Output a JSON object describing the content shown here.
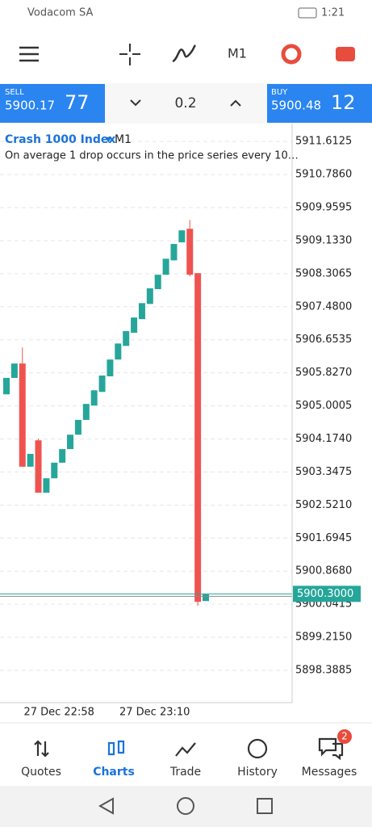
{
  "status_bar": {
    "carrier": "Vodacom SA",
    "time": "1:21"
  },
  "toolbar": {
    "timeframe": "M1"
  },
  "trade_panel": {
    "sell_label": "SELL",
    "sell_price": "5900.17",
    "sell_price_big": "77",
    "volume": "0.2",
    "buy_label": "BUY",
    "buy_price": "5900.48",
    "buy_price_big": "12"
  },
  "chart_data": {
    "type": "candlestick",
    "title": "Crash 1000 Index",
    "timeframe": "M1",
    "subtitle": "On average 1 drop occurs in the price series every 10…",
    "categories": [
      null,
      null,
      null,
      null,
      null,
      null,
      null,
      "27 Dec 22:58",
      null,
      null,
      null,
      null,
      null,
      null,
      null,
      null,
      null,
      null,
      null,
      "27 Dec 23:10",
      null,
      null,
      null,
      null,
      null,
      null
    ],
    "open": [
      5905.29,
      5905.7,
      5906.06,
      5903.48,
      5904.14,
      5902.83,
      5903.19,
      5903.58,
      5903.92,
      5904.28,
      5904.65,
      5905.01,
      5905.35,
      5905.74,
      5906.16,
      5906.5,
      5906.83,
      5907.17,
      5907.55,
      5907.92,
      5908.28,
      5908.64,
      5909.09,
      5909.43,
      5908.32,
      5900.12
    ],
    "high": [
      5905.7,
      5906.06,
      5906.46,
      5903.8,
      5904.18,
      5903.19,
      5903.58,
      5903.92,
      5904.28,
      5904.65,
      5905.05,
      5905.39,
      5905.76,
      5906.16,
      5906.56,
      5906.87,
      5907.21,
      5907.57,
      5907.94,
      5908.28,
      5908.68,
      5909.05,
      5909.39,
      5909.65,
      5908.32,
      5900.29
    ],
    "low": [
      5905.29,
      5905.7,
      5903.48,
      5903.48,
      5902.83,
      5902.83,
      5903.19,
      5903.58,
      5903.92,
      5904.28,
      5904.65,
      5905.01,
      5905.35,
      5905.74,
      5906.16,
      5906.5,
      5906.83,
      5907.17,
      5907.55,
      5907.92,
      5908.28,
      5908.64,
      5909.09,
      5908.24,
      5900.0,
      5900.12
    ],
    "close": [
      5905.7,
      5906.06,
      5903.48,
      5903.8,
      5902.83,
      5903.19,
      5903.58,
      5903.92,
      5904.28,
      5904.65,
      5905.05,
      5905.39,
      5905.76,
      5906.16,
      5906.56,
      5906.87,
      5907.21,
      5907.57,
      5907.94,
      5908.28,
      5908.68,
      5909.05,
      5909.39,
      5908.28,
      5900.1,
      5900.29
    ],
    "up_color": "#26a69a",
    "down_color": "#ef5350",
    "ylim": [
      5897.58,
      5912.02
    ],
    "yticks": [
      5911.6125,
      {
        "value": 5910.786,
        "label": "5910.7860"
      },
      5909.9595,
      {
        "value": 5909.133,
        "label": "5909.1330"
      },
      5908.3065,
      {
        "value": 5907.48,
        "label": "5907.4800"
      },
      5906.6535,
      {
        "value": 5905.827,
        "label": "5905.8270"
      },
      5905.0005,
      {
        "value": 5904.174,
        "label": "5904.1740"
      },
      5903.3475,
      {
        "value": 5902.521,
        "label": "5902.5210"
      },
      5901.6945,
      {
        "value": 5900.868,
        "label": "5900.8680"
      },
      5900.0415,
      {
        "value": 5899.215,
        "label": "5899.2150"
      },
      5898.3885
    ],
    "current_price": {
      "value": 5900.3,
      "label": "5900.3000"
    },
    "grid": true
  },
  "nav": {
    "items": [
      "Quotes",
      "Charts",
      "Trade",
      "History",
      "Messages"
    ],
    "badge": 2
  }
}
